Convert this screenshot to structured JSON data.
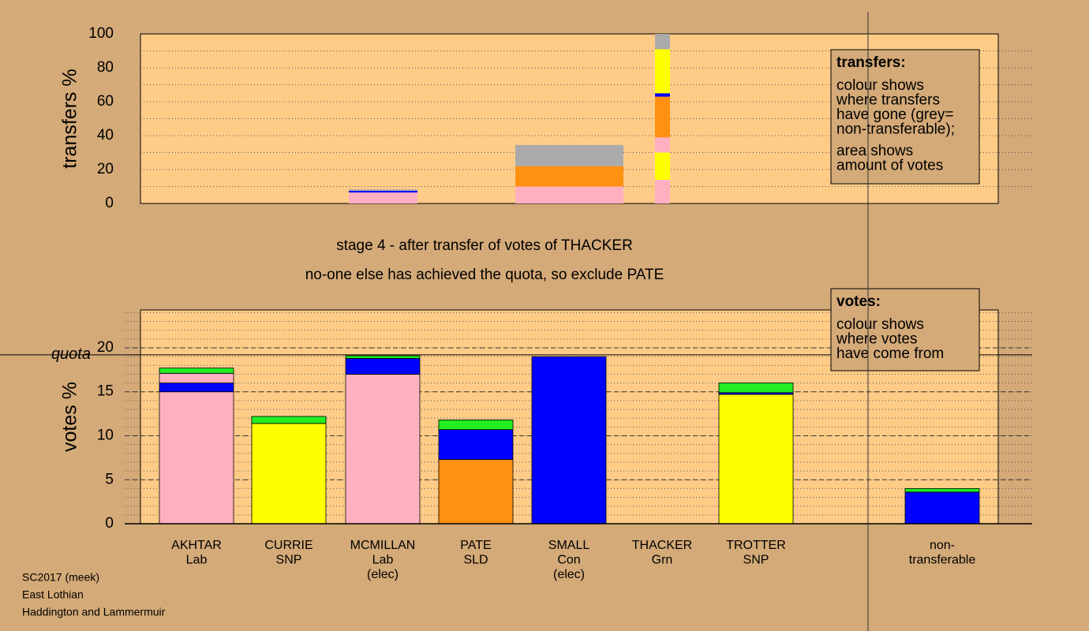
{
  "chart_data": [
    {
      "type": "bar",
      "ylabel": "transfers %",
      "ylim": [
        0,
        100
      ],
      "yticks": [
        0,
        20,
        40,
        60,
        80,
        100
      ],
      "grid_step": 10,
      "bars": [
        {
          "segments": [
            {
              "color": "#ffb0c0",
              "value": 6.5
            },
            {
              "color": "#0000ff",
              "value": 1
            },
            {
              "color": "#aaaaaa",
              "value": 0.8
            }
          ]
        },
        {
          "segments": [
            {
              "color": "#ffb0c0",
              "value": 3
            },
            {
              "color": "#ffb0c0",
              "value": 7
            },
            {
              "color": "#ff9010",
              "value": 12
            },
            {
              "color": "#aaaaaa",
              "value": 12.5
            }
          ]
        },
        {
          "segments": [
            {
              "color": "#ffb0c0",
              "value": 14
            },
            {
              "color": "#ffff00",
              "value": 16
            },
            {
              "color": "#ffb0c0",
              "value": 9
            },
            {
              "color": "#ff9010",
              "value": 24
            },
            {
              "color": "#0000ff",
              "value": 2
            },
            {
              "color": "#ffff00",
              "value": 26
            },
            {
              "color": "#aaaaaa",
              "value": 9
            }
          ]
        }
      ],
      "legend": {
        "title": "transfers:",
        "paragraphs": [
          [
            "colour shows",
            "where transfers",
            "have gone (grey=",
            "non-transferable);"
          ],
          [
            "area shows",
            "amount of votes"
          ]
        ]
      }
    },
    {
      "type": "bar",
      "ylabel": "votes %",
      "ylim": [
        0,
        24.3
      ],
      "yticks": [
        0,
        5,
        10,
        15,
        20
      ],
      "minor_grid": 1,
      "quota": {
        "value": 19.2,
        "label": "quota"
      },
      "bars": [
        {
          "label": [
            "AKHTAR",
            "Lab"
          ],
          "segments": [
            {
              "color": "#ffb0c0",
              "value": 15
            },
            {
              "color": "#0000ff",
              "value": 1
            },
            {
              "color": "#ffb0c0",
              "value": 1.1
            },
            {
              "color": "#22ee22",
              "value": 0.6
            }
          ]
        },
        {
          "label": [
            "CURRIE",
            "SNP"
          ],
          "segments": [
            {
              "color": "#ffff00",
              "value": 11.4
            },
            {
              "color": "#22ee22",
              "value": 0.8
            }
          ]
        },
        {
          "label": [
            "MCMILLAN",
            "Lab",
            "(elec)"
          ],
          "segments": [
            {
              "color": "#ffb0c0",
              "value": 17
            },
            {
              "color": "#0000ff",
              "value": 1.8
            },
            {
              "color": "#22ee22",
              "value": 0.3
            }
          ]
        },
        {
          "label": [
            "PATE",
            "SLD"
          ],
          "segments": [
            {
              "color": "#ff9010",
              "value": 7.3
            },
            {
              "color": "#0000ff",
              "value": 3.4
            },
            {
              "color": "#22ee22",
              "value": 1.1
            }
          ]
        },
        {
          "label": [
            "SMALL",
            "Con",
            "(elec)"
          ],
          "segments": [
            {
              "color": "#0000ff",
              "value": 19
            }
          ]
        },
        {
          "label": [
            "THACKER",
            "Grn"
          ],
          "segments": []
        },
        {
          "label": [
            "TROTTER",
            "SNP"
          ],
          "segments": [
            {
              "color": "#ffff00",
              "value": 14.7
            },
            {
              "color": "#0000ff",
              "value": 0.2
            },
            {
              "color": "#22ee22",
              "value": 1.1
            }
          ]
        },
        {
          "label": [
            "non-",
            "transferable"
          ],
          "segments": [
            {
              "color": "#0000ff",
              "value": 3.6
            },
            {
              "color": "#22ee22",
              "value": 0.4
            }
          ]
        }
      ],
      "legend": {
        "title": "votes:",
        "paragraphs": [
          [
            "colour shows",
            "where votes",
            "have come from"
          ]
        ]
      }
    }
  ],
  "captions": [
    "stage 4 - after transfer of votes of THACKER",
    "no-one else has achieved the quota, so exclude PATE"
  ],
  "footer": [
    "SC2017 (meek)",
    "East Lothian",
    "Haddington and Lammermuir"
  ]
}
